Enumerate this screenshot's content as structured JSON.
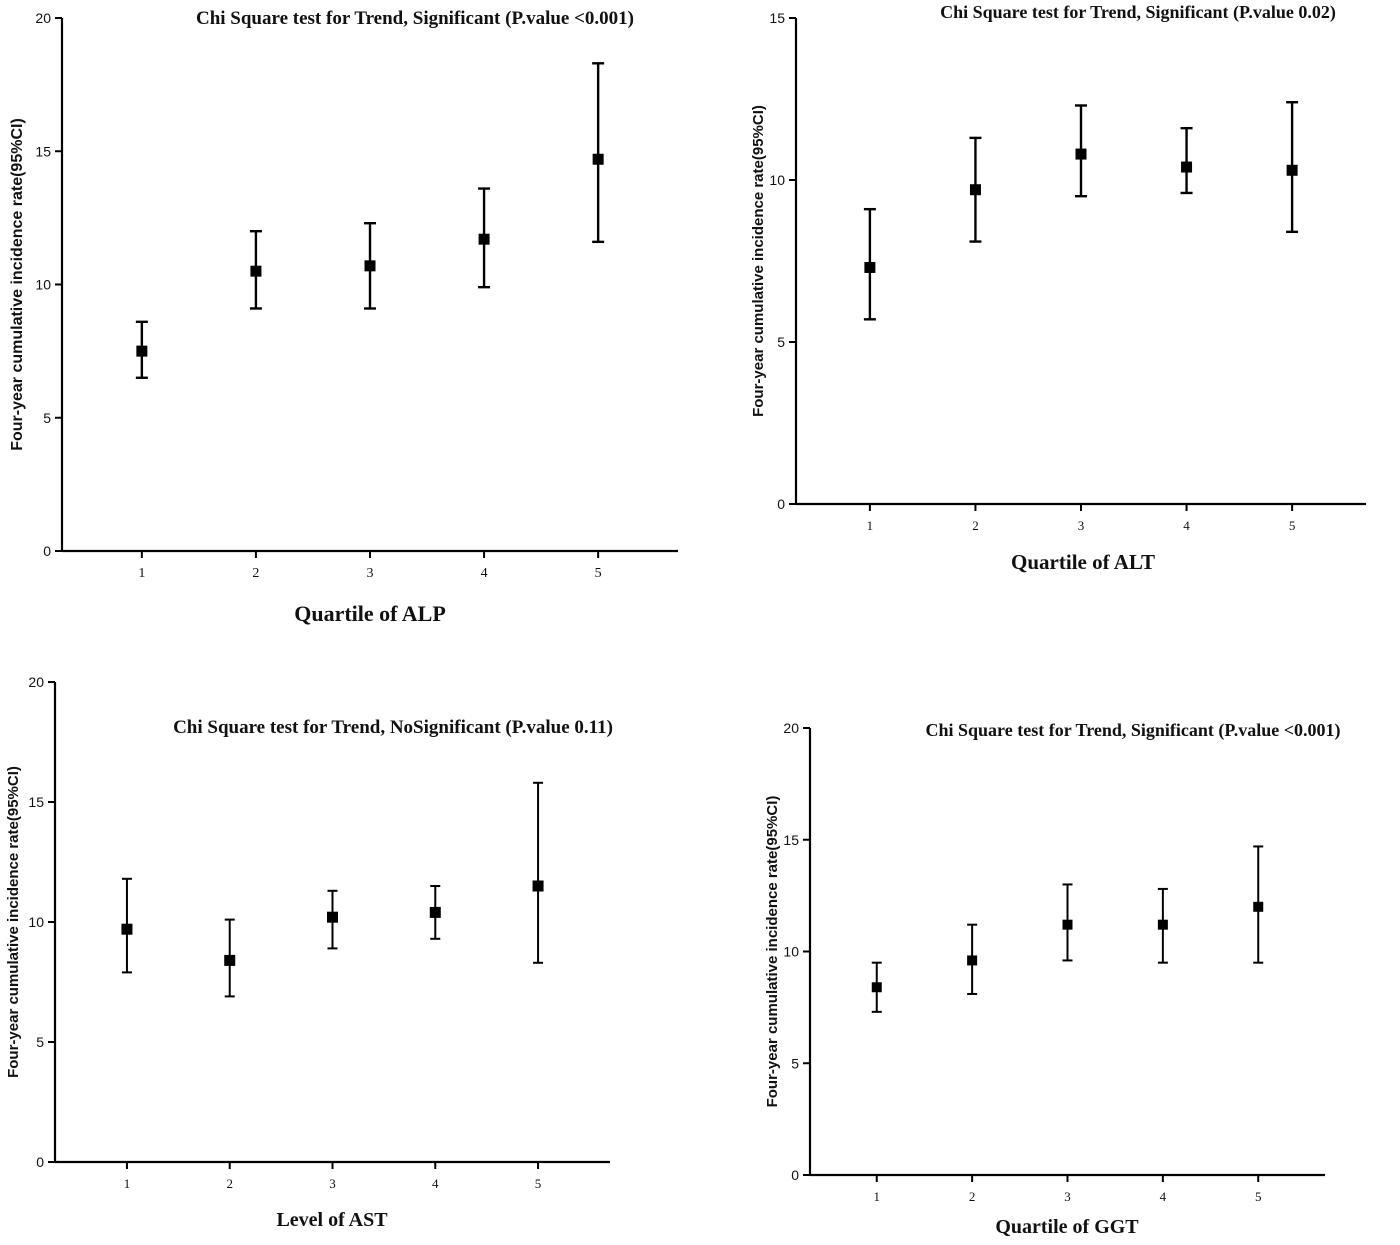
{
  "chart_data": [
    {
      "type": "scatter",
      "title": "Chi Square test for Trend, Significant (P.value <0.001)",
      "xlabel": "Quartile of ALP",
      "ylabel": "Four-year cumulative incidence rate(95%CI)",
      "x": [
        1,
        2,
        3,
        4,
        5
      ],
      "values": [
        7.5,
        10.5,
        10.7,
        11.7,
        14.7
      ],
      "lower": [
        6.5,
        9.1,
        9.1,
        9.9,
        11.6
      ],
      "upper": [
        8.6,
        12.0,
        12.3,
        13.6,
        18.3
      ],
      "xlim": [
        0.3,
        5.7
      ],
      "ylim": [
        0,
        20
      ],
      "yticks": [
        0,
        5,
        10,
        15,
        20
      ],
      "xticks": [
        "1",
        "2",
        "3",
        "4",
        "5"
      ],
      "grid": false
    },
    {
      "type": "scatter",
      "title": "Chi Square test for Trend, Significant (P.value 0.02)",
      "xlabel": "Quartile of ALT",
      "ylabel": "Four-year cumulative incidence rate(95%CI)",
      "x": [
        1,
        2,
        3,
        4,
        5
      ],
      "values": [
        7.3,
        9.7,
        10.8,
        10.4,
        10.3
      ],
      "lower": [
        5.7,
        8.1,
        9.5,
        9.6,
        8.4
      ],
      "upper": [
        9.1,
        11.3,
        12.3,
        11.6,
        12.4
      ],
      "xlim": [
        0.3,
        5.7
      ],
      "ylim": [
        0,
        15
      ],
      "yticks": [
        0,
        5,
        10,
        15
      ],
      "xticks": [
        "1",
        "2",
        "3",
        "4",
        "5"
      ],
      "grid": false
    },
    {
      "type": "scatter",
      "title": "Chi Square test for Trend, NoSignificant (P.value 0.11)",
      "xlabel": "Level of AST",
      "ylabel": "Four-year cumulative incidence rate(95%CI)",
      "x": [
        1,
        2,
        3,
        4,
        5
      ],
      "values": [
        9.7,
        8.4,
        10.2,
        10.4,
        11.5
      ],
      "lower": [
        7.9,
        6.9,
        8.9,
        9.3,
        8.3
      ],
      "upper": [
        11.8,
        10.1,
        11.3,
        11.5,
        15.8
      ],
      "xlim": [
        0.3,
        5.7
      ],
      "ylim": [
        0,
        20
      ],
      "yticks": [
        0,
        5,
        10,
        15,
        20
      ],
      "xticks": [
        "1",
        "2",
        "3",
        "4",
        "5"
      ],
      "grid": false
    },
    {
      "type": "scatter",
      "title": "Chi Square test for Trend, Significant (P.value <0.001)",
      "xlabel": "Quartile of GGT",
      "ylabel": "Four-year cumulative incidence rate(95%CI)",
      "x": [
        1,
        2,
        3,
        4,
        5
      ],
      "values": [
        8.4,
        9.6,
        11.2,
        11.2,
        12.0
      ],
      "lower": [
        7.3,
        8.1,
        9.6,
        9.5,
        9.5
      ],
      "upper": [
        9.5,
        11.2,
        13.0,
        12.8,
        14.7
      ],
      "xlim": [
        0.3,
        5.7
      ],
      "ylim": [
        0,
        20
      ],
      "yticks": [
        0,
        5,
        10,
        15,
        20
      ],
      "xticks": [
        "1",
        "2",
        "3",
        "4",
        "5"
      ],
      "grid": false
    }
  ]
}
